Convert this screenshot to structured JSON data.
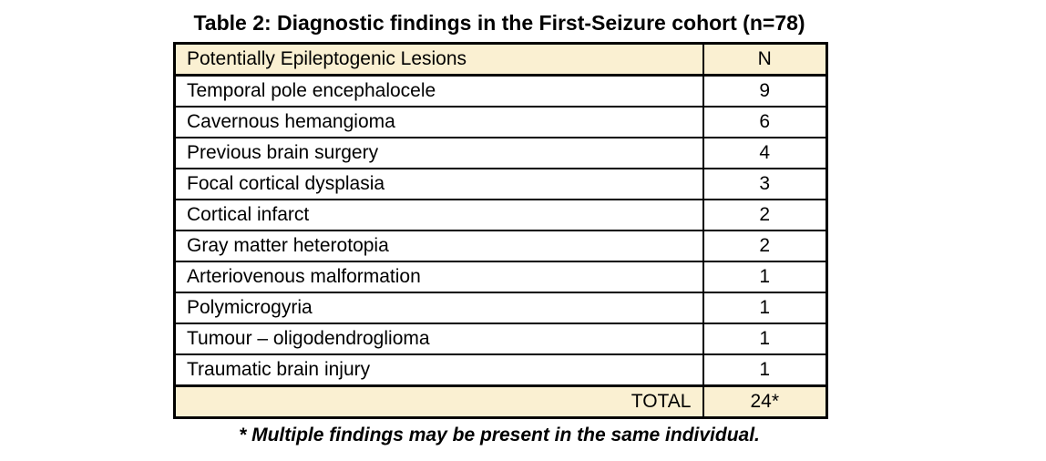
{
  "title": "Table 2: Diagnostic findings in the First-Seizure cohort (n=78)",
  "table": {
    "header": {
      "lesion": "Potentially Epileptogenic Lesions",
      "n": "N"
    },
    "rows": [
      {
        "lesion": "Temporal pole encephalocele",
        "n": "9"
      },
      {
        "lesion": "Cavernous hemangioma",
        "n": "6"
      },
      {
        "lesion": "Previous brain surgery",
        "n": "4"
      },
      {
        "lesion": "Focal cortical dysplasia",
        "n": "3"
      },
      {
        "lesion": "Cortical infarct",
        "n": "2"
      },
      {
        "lesion": "Gray matter heterotopia",
        "n": "2"
      },
      {
        "lesion": "Arteriovenous malformation",
        "n": "1"
      },
      {
        "lesion": "Polymicrogyria",
        "n": "1"
      },
      {
        "lesion": "Tumour – oligodendroglioma",
        "n": "1"
      },
      {
        "lesion": "Traumatic brain injury",
        "n": "1"
      }
    ],
    "total": {
      "label": "TOTAL",
      "value": "24*"
    }
  },
  "footnote": "* Multiple findings may be present in the same individual.",
  "colors": {
    "header_bg": "#FAF0D2",
    "total_bg": "#FAF0D2",
    "border": "#000000",
    "text": "#000000",
    "page_bg": "#FFFFFF"
  }
}
